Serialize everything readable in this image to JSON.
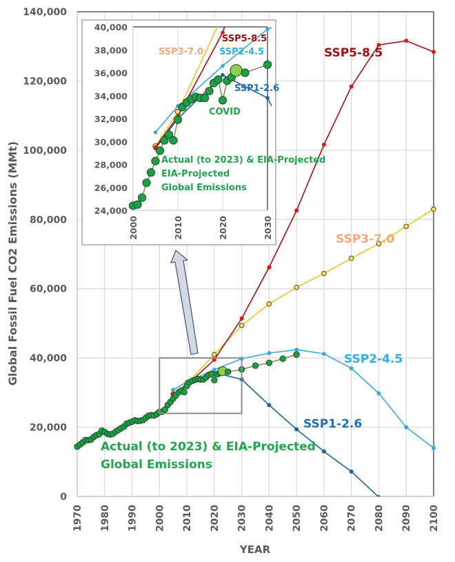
{
  "chart_data": {
    "type": "line",
    "title": "",
    "xlabel": "YEAR",
    "ylabel": "Global Fossil Fuel CO2 Emissions (MMt)",
    "xlim": [
      1970,
      2100
    ],
    "ylim": [
      0,
      140000
    ],
    "grid": true,
    "x_ticks": [
      "1970",
      "1980",
      "1990",
      "2000",
      "2010",
      "2020",
      "2030",
      "2040",
      "2050",
      "2060",
      "2070",
      "2080",
      "2090",
      "2100"
    ],
    "y_ticks": [
      "0",
      "20,000",
      "40,000",
      "60,000",
      "80,000",
      "100,000",
      "120,000",
      "140,000"
    ],
    "series": [
      {
        "name": "Actual (to 2023) & EIA-Projected Global Emissions",
        "label_lines": [
          "Actual (to 2023) & EIA-Projected",
          "Global Emissions"
        ],
        "color": "#1e9e48",
        "label_color": "#22a34e",
        "x": [
          1970,
          1971,
          1972,
          1973,
          1974,
          1975,
          1976,
          1977,
          1978,
          1979,
          1980,
          1981,
          1982,
          1983,
          1984,
          1985,
          1986,
          1987,
          1988,
          1989,
          1990,
          1991,
          1992,
          1993,
          1994,
          1995,
          1996,
          1997,
          1998,
          1999,
          2000,
          2001,
          2002,
          2003,
          2004,
          2005,
          2006,
          2007,
          2008,
          2009,
          2010,
          2011,
          2012,
          2013,
          2014,
          2015,
          2016,
          2017,
          2018,
          2019,
          2020,
          2021,
          2022,
          2023,
          2025,
          2030,
          2035,
          2040,
          2045,
          2050
        ],
        "values": [
          14400,
          15000,
          15600,
          16300,
          16300,
          16400,
          17200,
          17700,
          18000,
          19000,
          18600,
          18100,
          17900,
          18100,
          18700,
          19200,
          19700,
          20200,
          21000,
          21300,
          21600,
          22000,
          21800,
          21900,
          22100,
          22700,
          23300,
          23500,
          23400,
          23800,
          24400,
          24500,
          25100,
          26400,
          27300,
          28300,
          29200,
          30100,
          30600,
          30100,
          31900,
          33000,
          33400,
          33700,
          33900,
          33800,
          33800,
          34400,
          35100,
          35400,
          33600,
          35300,
          35600,
          36200,
          36000,
          36700,
          37800,
          38600,
          39800,
          41000
        ],
        "highlight": {
          "x": 2023,
          "value": 36200,
          "color": "#8fd14f"
        }
      },
      {
        "name": "SSP5-8.5",
        "color": "#a00f12",
        "marker_color": "#e0141a",
        "x": [
          2005,
          2010,
          2020,
          2030,
          2040,
          2050,
          2060,
          2070,
          2080,
          2090,
          2100
        ],
        "values": [
          29500,
          32200,
          39500,
          51400,
          66200,
          82600,
          101600,
          118400,
          130400,
          131600,
          128400
        ]
      },
      {
        "name": "SSP3-7.0",
        "color": "#e8c626",
        "label_color": "#f2a97e",
        "marker_color": "#fbe370",
        "x": [
          2005,
          2010,
          2020,
          2030,
          2040,
          2050,
          2060,
          2070,
          2080,
          2090,
          2100
        ],
        "values": [
          29600,
          32600,
          41000,
          49400,
          55600,
          60400,
          64400,
          68800,
          73000,
          78000,
          83000
        ]
      },
      {
        "name": "SSP2-4.5",
        "color": "#3ba9d9",
        "label_color": "#2fb0e0",
        "x": [
          2005,
          2010,
          2020,
          2030,
          2040,
          2050,
          2060,
          2070,
          2080,
          2090,
          2100
        ],
        "values": [
          30800,
          33100,
          36600,
          39800,
          41400,
          42400,
          41200,
          37000,
          29800,
          20000,
          14000
        ]
      },
      {
        "name": "SSP1-2.6",
        "color": "#1d5f99",
        "label_color": "#1f6fb5",
        "x": [
          2005,
          2010,
          2020,
          2030,
          2040,
          2050,
          2060,
          2070,
          2080
        ],
        "values": [
          29400,
          32000,
          35800,
          33800,
          26400,
          19400,
          13000,
          7200,
          -200
        ]
      }
    ],
    "annotations": [
      {
        "text": "COVID",
        "x": 2020,
        "value": 33600,
        "where": "inset",
        "color": "#22a34e"
      }
    ],
    "inset": {
      "xlim": [
        2000,
        2030
      ],
      "ylim": [
        24000,
        40000
      ],
      "x_ticks": [
        "2000",
        "2010",
        "2020",
        "2030"
      ],
      "y_ticks": [
        "24,000",
        "26,000",
        "28,000",
        "30,000",
        "32,000",
        "34,000",
        "36,000",
        "38,000",
        "40,000"
      ],
      "zoom_region": {
        "x": [
          2000,
          2030
        ],
        "value": [
          24000,
          40000
        ]
      },
      "arrow": "points from zoom region up to inset"
    }
  }
}
